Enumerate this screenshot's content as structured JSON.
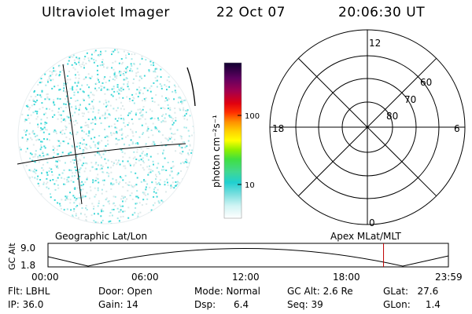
{
  "header": {
    "instrument": "Ultraviolet Imager",
    "date": "22 Oct 07",
    "time": "20:06:30 UT"
  },
  "colorbar": {
    "label": "photon cm⁻²s⁻¹",
    "ticks": [
      "100",
      "10"
    ]
  },
  "polar_plot": {
    "mlt_labels": {
      "top": "12",
      "left": "18",
      "right": "6",
      "bottom": "0"
    },
    "lat_labels": [
      "60",
      "70",
      "80"
    ]
  },
  "orbit": {
    "left_title": "Geographic Lat/Lon",
    "right_title": "Apex  MLat/MLT",
    "ylabel": "GC Alt",
    "yticks": [
      "9.0",
      "1.8"
    ],
    "xticks": [
      "00:00",
      "06:00",
      "12:00",
      "18:00",
      "23:59"
    ],
    "current_time_fraction": 0.838
  },
  "info": {
    "flt": "Flt: LBHL",
    "ip": "IP: 36.0",
    "door": "Door: Open",
    "gain": "Gain: 14",
    "mode": "Mode: Normal",
    "dsp": "Dsp:      6.4",
    "gcalt": "GC Alt: 2.6 Re",
    "seq": "Seq: 39",
    "glat": "GLat:   27.6",
    "glon": "GLon:     1.4"
  }
}
